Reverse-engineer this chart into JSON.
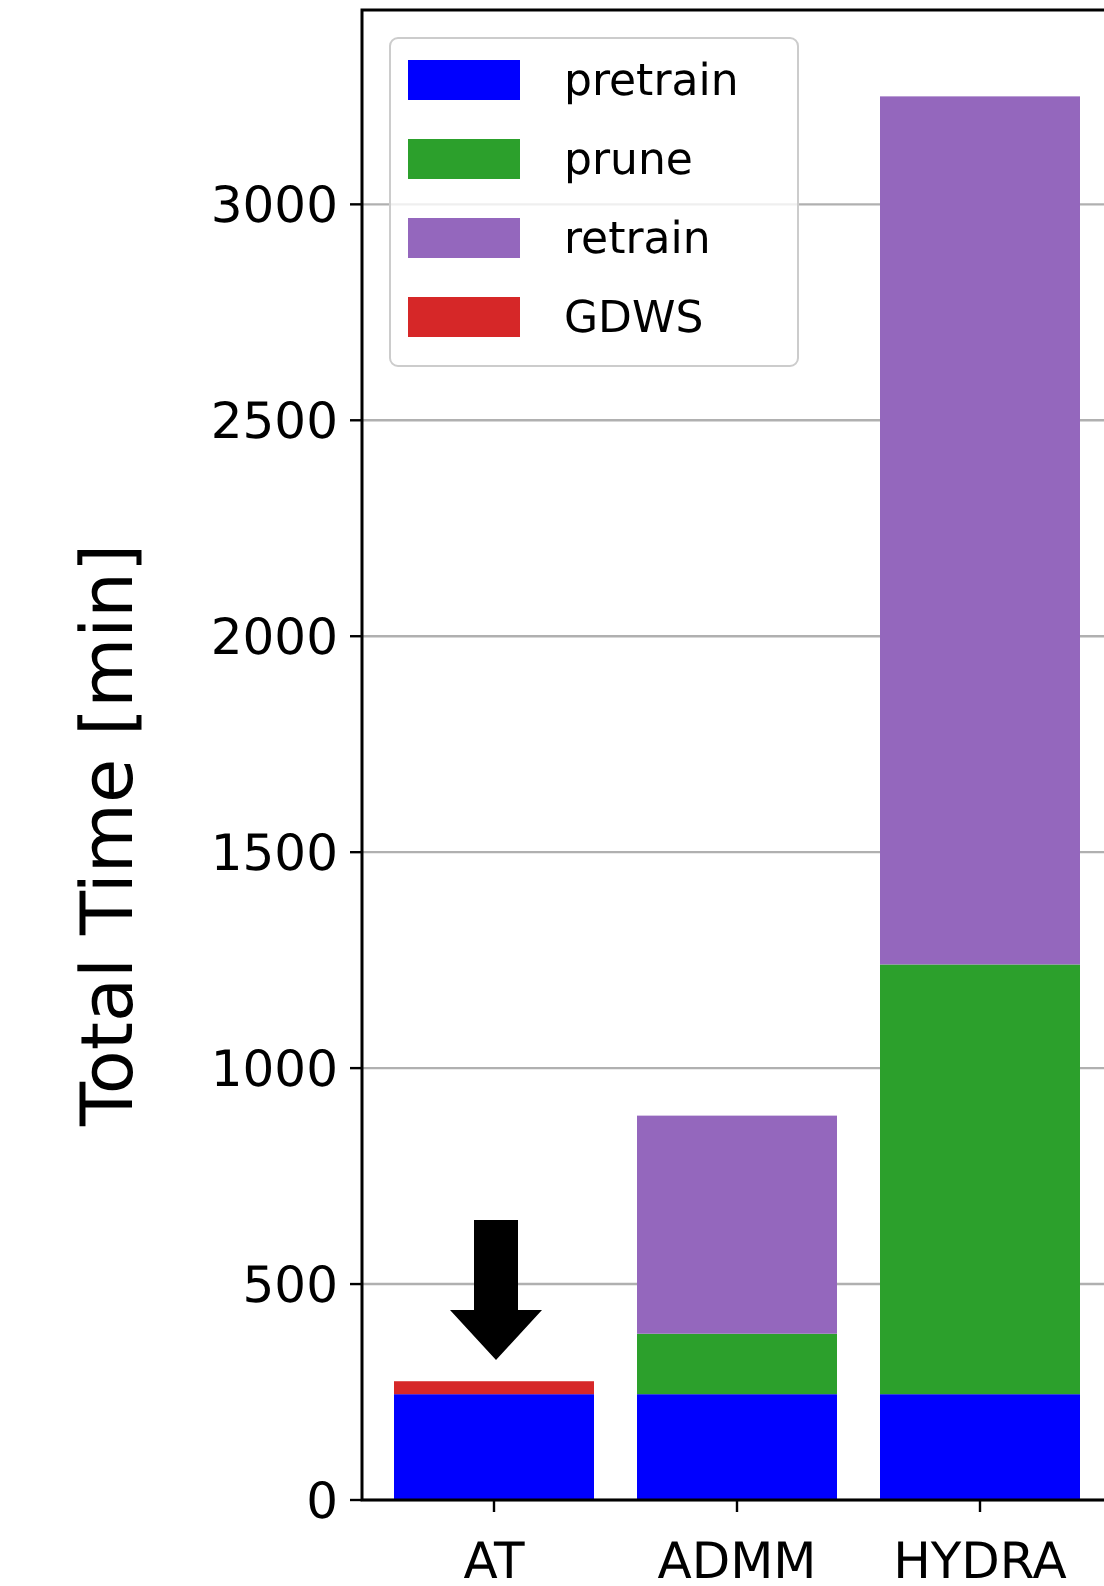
{
  "chart_data": {
    "type": "bar",
    "ylabel": "Total Time [min]",
    "categories": [
      "AT",
      "ADMM",
      "HYDRA"
    ],
    "stacked": true,
    "series": [
      {
        "name": "pretrain",
        "color": "#0000ff",
        "values": [
          245,
          245,
          245
        ]
      },
      {
        "name": "prune",
        "color": "#2ca02c",
        "values": [
          null,
          140,
          995
        ]
      },
      {
        "name": "retrain",
        "color": "#9467bd",
        "values": [
          null,
          505,
          2010
        ]
      },
      {
        "name": "GDWS",
        "color": "#d62728",
        "values": [
          30,
          null,
          null
        ]
      }
    ],
    "ylim": [
      0,
      3450
    ],
    "yticks": [
      0,
      500,
      1000,
      1500,
      2000,
      2500,
      3000
    ],
    "grid": "y",
    "legend": "top left"
  }
}
